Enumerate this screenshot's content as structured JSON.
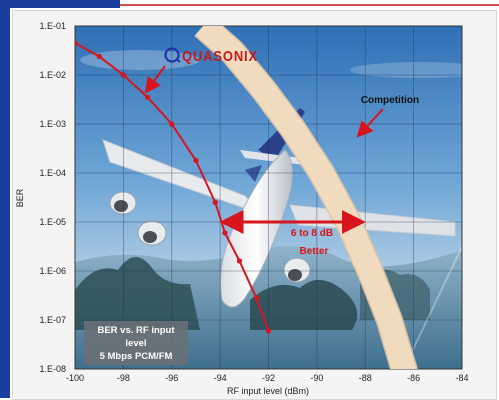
{
  "chart_data": {
    "type": "line",
    "xlabel": "RF input level (dBm)",
    "ylabel": "BER",
    "xlim": [
      -100,
      -84
    ],
    "ylim_exponent": [
      -8,
      -1
    ],
    "log_y": true,
    "grid": true,
    "x_ticks": [
      "-100",
      "-98",
      "-96",
      "-94",
      "-92",
      "-90",
      "-88",
      "-86",
      "-84"
    ],
    "y_ticks": [
      "1.E-01",
      "1.E-02",
      "1.E-03",
      "1.E-04",
      "1.E-05",
      "1.E-06",
      "1.E-07",
      "1.E-08"
    ],
    "series": [
      {
        "name": "Quasonix",
        "color": "#d8141c",
        "x": [
          -100,
          -99,
          -98,
          -97,
          -96,
          -95,
          -94.2,
          -93.8,
          -93.2,
          -92.5,
          -92
        ],
        "y": [
          0.045,
          0.024,
          0.01,
          0.0035,
          0.001,
          0.00018,
          2.5e-05,
          6e-06,
          1.6e-06,
          2.8e-07,
          6e-08
        ],
        "markers": true
      },
      {
        "name": "Competition",
        "color": "#f2dcc0",
        "x": [
          -94.7,
          -93.5,
          -92.2,
          -91,
          -89.8,
          -88.7,
          -87.8,
          -87.0,
          -86.4,
          -85.8
        ],
        "y": [
          0.1,
          0.03,
          0.005,
          0.0008,
          0.0001,
          1e-05,
          1e-06,
          1e-07,
          1e-08,
          1e-09
        ],
        "band": true
      }
    ],
    "annotations": {
      "competition": "Competition",
      "gap_line1": "6 to 8 dB",
      "gap_line2": "Better",
      "box_line1": "BER vs. RF input",
      "box_line2": "level",
      "box_line3": "5 Mbps PCM/FM"
    },
    "gap_arrow": {
      "from_x": -93.9,
      "to_x": -88.1,
      "y": 1e-05
    },
    "logo_text": "QUASONIX",
    "background": "airliner in flight over blue sky and sea"
  }
}
